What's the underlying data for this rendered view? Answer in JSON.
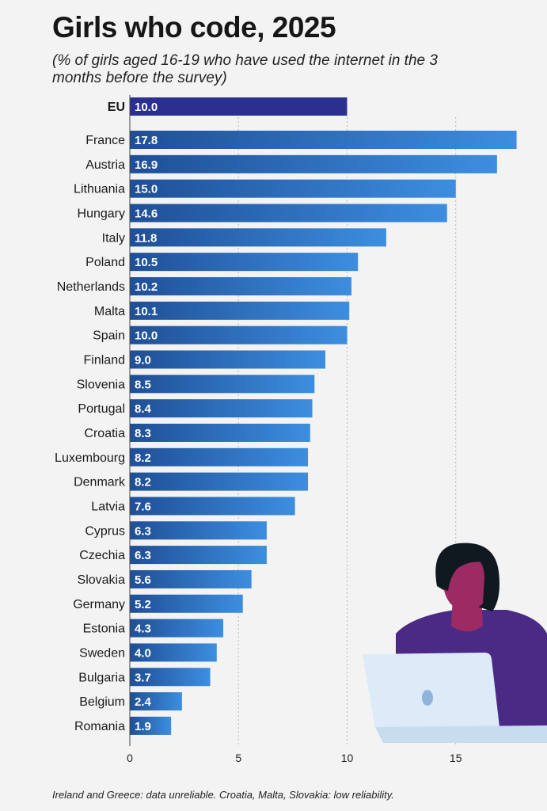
{
  "title": "Girls who code, 2025",
  "subtitle": "(% of girls aged 16-19 who have used the internet in the 3 months before the survey)",
  "footnote": "Ireland and Greece: data unreliable. Croatia, Malta, Slovakia: low reliability.",
  "colors": {
    "bar_dark": "#1f4f96",
    "bar_light": "#3d8ee0",
    "eu_bar": "#2b2f8f",
    "grid": "#b8b8b8",
    "background": "#f3f3f3",
    "illustration_skin": "#9c2a63",
    "illustration_hair": "#101820",
    "illustration_shirt": "#4a2a84",
    "illustration_laptop": "#dcebf7"
  },
  "chart_data": {
    "type": "bar",
    "orientation": "horizontal",
    "highlight": {
      "category": "EU",
      "value": 10.0,
      "display": "10.0"
    },
    "categories": [
      "France",
      "Austria",
      "Lithuania",
      "Hungary",
      "Italy",
      "Poland",
      "Netherlands",
      "Malta",
      "Spain",
      "Finland",
      "Slovenia",
      "Portugal",
      "Croatia",
      "Luxembourg",
      "Denmark",
      "Latvia",
      "Cyprus",
      "Czechia",
      "Slovakia",
      "Germany",
      "Estonia",
      "Sweden",
      "Bulgaria",
      "Belgium",
      "Romania"
    ],
    "values": [
      17.8,
      16.9,
      15.0,
      14.6,
      11.8,
      10.5,
      10.2,
      10.1,
      10.0,
      9.0,
      8.5,
      8.4,
      8.3,
      8.2,
      8.2,
      7.6,
      6.3,
      6.3,
      5.6,
      5.2,
      4.3,
      4.0,
      3.7,
      2.4,
      1.9
    ],
    "display_values": [
      "17.8",
      "16.9",
      "15.0",
      "14.6",
      "11.8",
      "10.5",
      "10.2",
      "10.1",
      "10.0",
      "9.0",
      "8.5",
      "8.4",
      "8.3",
      "8.2",
      "8.2",
      "7.6",
      "6.3",
      "6.3",
      "5.6",
      "5.2",
      "4.3",
      "4.0",
      "3.7",
      "2.4",
      "1.9"
    ],
    "xticks": [
      0,
      5,
      10,
      15
    ],
    "xtick_labels": [
      "0",
      "5",
      "10",
      "15"
    ],
    "xlim": [
      0,
      19.2
    ],
    "grid": "vertical dashed",
    "legend": "none"
  }
}
